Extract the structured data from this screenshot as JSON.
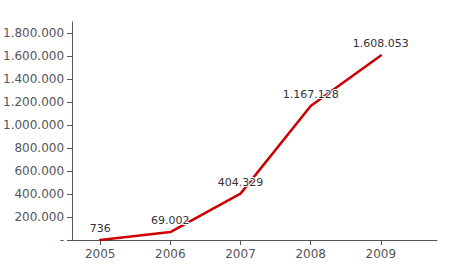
{
  "chart_data": {
    "type": "line",
    "x": [
      2005,
      2006,
      2007,
      2008,
      2009
    ],
    "values": [
      736,
      69002,
      404329,
      1167128,
      1608053
    ],
    "value_labels": [
      "736",
      "69.002",
      "404.329",
      "1.167.128",
      "1.608.053"
    ],
    "data_labels": true,
    "color": "#cc0000",
    "xlim": [
      2004.6,
      2009.8
    ],
    "xticks": [
      2005,
      2006,
      2007,
      2008,
      2009
    ],
    "ylim": [
      0,
      1900000
    ],
    "yticks": [
      {
        "value": 0,
        "label": "-"
      },
      {
        "value": 200000,
        "label": "200.000"
      },
      {
        "value": 400000,
        "label": "400.000"
      },
      {
        "value": 600000,
        "label": "600.000"
      },
      {
        "value": 800000,
        "label": "800.000"
      },
      {
        "value": 1000000,
        "label": "1.000.000"
      },
      {
        "value": 1200000,
        "label": "1.200.000"
      },
      {
        "value": 1400000,
        "label": "1.400.000"
      },
      {
        "value": 1600000,
        "label": "1.600.000"
      },
      {
        "value": 1800000,
        "label": "1.800.000"
      }
    ],
    "grid": false
  }
}
